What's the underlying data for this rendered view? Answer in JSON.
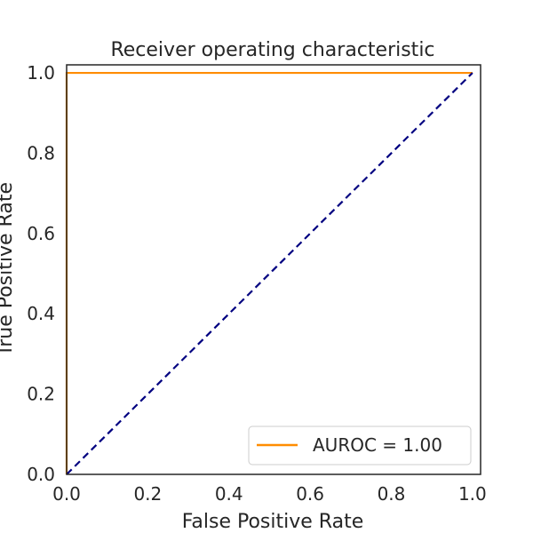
{
  "chart_data": {
    "type": "line",
    "title": "Receiver operating characteristic",
    "xlabel": "False Positive Rate",
    "ylabel": "True Positive Rate",
    "xlim": [
      0.0,
      1.02
    ],
    "ylim": [
      0.0,
      1.02
    ],
    "x_ticks": [
      "0.0",
      "0.2",
      "0.4",
      "0.6",
      "0.8",
      "1.0"
    ],
    "y_ticks": [
      "0.0",
      "0.2",
      "0.4",
      "0.6",
      "0.8",
      "1.0"
    ],
    "grid": false,
    "legend_position": "lower-right",
    "series": [
      {
        "name": "AUROC = 1.00",
        "color": "#ff8c00",
        "style": "solid",
        "x": [
          0.0,
          0.0,
          1.0
        ],
        "y": [
          0.0,
          1.0,
          1.0
        ]
      },
      {
        "color": "#000080",
        "style": "dashed",
        "x": [
          0.0,
          1.0
        ],
        "y": [
          0.0,
          1.0
        ]
      }
    ]
  }
}
